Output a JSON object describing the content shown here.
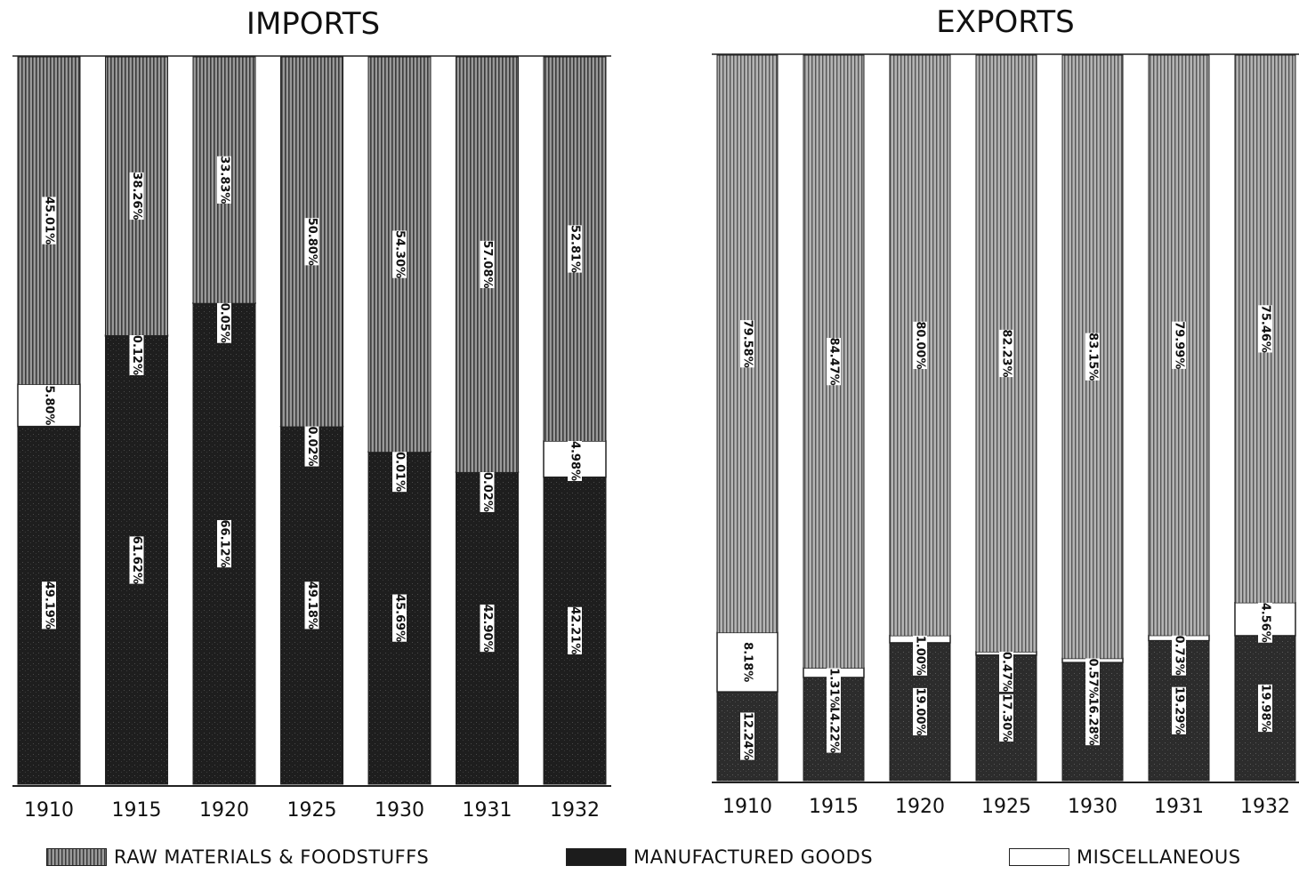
{
  "colors": {
    "raw": "#6f6f6f",
    "raw_export": "#8a8a8a",
    "manufactured": "#1c1c1c",
    "misc": "#ffffff"
  },
  "legend": [
    {
      "key": "raw",
      "label": "RAW MATERIALS & FOODSTUFFS"
    },
    {
      "key": "manufactured",
      "label": "MANUFACTURED GOODS"
    },
    {
      "key": "misc",
      "label": "MISCELLANEOUS"
    }
  ],
  "chart_data": [
    {
      "type": "bar",
      "stacked": true,
      "orientation": "vertical",
      "title": "IMPORTS",
      "categories": [
        "1910",
        "1915",
        "1920",
        "1925",
        "1930",
        "1931",
        "1932"
      ],
      "series": [
        {
          "name": "MANUFACTURED GOODS",
          "key": "manufactured",
          "values": [
            49.19,
            61.62,
            66.12,
            49.18,
            45.69,
            42.9,
            42.21
          ],
          "labels": [
            "49.19%",
            "61.62%",
            "66.12%",
            "49.18%",
            "45.69%",
            "42.90%",
            "42.21%"
          ]
        },
        {
          "name": "MISCELLANEOUS",
          "key": "misc",
          "values": [
            5.8,
            0.12,
            0.05,
            0.02,
            0.01,
            0.02,
            4.98
          ],
          "labels": [
            "5.80%",
            "0.12%",
            "0.05%",
            "0.02%",
            "0.01%",
            "0.02%",
            "4.98%"
          ]
        },
        {
          "name": "RAW MATERIALS & FOODSTUFFS",
          "key": "raw",
          "values": [
            45.01,
            38.26,
            33.83,
            50.8,
            54.3,
            57.08,
            52.81
          ],
          "labels": [
            "45.01%",
            "38.26%",
            "33.83%",
            "50.80%",
            "54.30%",
            "57.08%",
            "52.81%"
          ]
        }
      ],
      "ylim": [
        0,
        100
      ]
    },
    {
      "type": "bar",
      "stacked": true,
      "orientation": "vertical",
      "title": "EXPORTS",
      "categories": [
        "1910",
        "1915",
        "1920",
        "1925",
        "1930",
        "1931",
        "1932"
      ],
      "series": [
        {
          "name": "MANUFACTURED GOODS",
          "key": "manufactured",
          "values": [
            12.24,
            14.22,
            19.0,
            17.3,
            16.28,
            19.29,
            19.98
          ],
          "labels": [
            "12.24%",
            "14.22%",
            "19.00%",
            "17.30%",
            "16.28%",
            "19.29%",
            "19.98%"
          ]
        },
        {
          "name": "MISCELLANEOUS",
          "key": "misc",
          "values": [
            8.18,
            1.31,
            1.0,
            0.47,
            0.57,
            0.73,
            4.56
          ],
          "labels": [
            "8.18%",
            "1.31%",
            "1.00%",
            "0.47%",
            "0.57%",
            "0.73%",
            "4.56%"
          ]
        },
        {
          "name": "RAW MATERIALS & FOODSTUFFS",
          "key": "raw",
          "values": [
            79.58,
            84.47,
            80.0,
            82.23,
            83.15,
            79.99,
            75.46
          ],
          "labels": [
            "79.58%",
            "84.47%",
            "80.00%",
            "82.23%",
            "83.15%",
            "79.99%",
            "75.46%"
          ]
        }
      ],
      "ylim": [
        0,
        100
      ]
    }
  ]
}
